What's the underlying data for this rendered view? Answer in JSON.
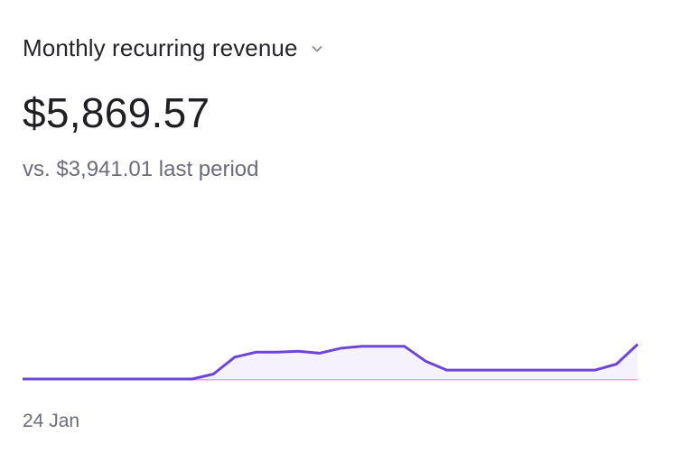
{
  "metric": {
    "title": "Monthly recurring revenue",
    "dropdown_icon": "chevron-down-icon",
    "value": "$5,869.57",
    "comparison": "vs. $3,941.01 last period"
  },
  "chart_data": {
    "type": "line",
    "x_start_label": "24 Jan",
    "series": [
      {
        "role": "current period",
        "color": "#6e46d6",
        "fill": "#f6f2fc",
        "values": [
          0,
          0,
          0,
          0,
          0,
          0,
          0,
          0,
          0,
          0.05,
          0.22,
          0.27,
          0.27,
          0.28,
          0.26,
          0.31,
          0.33,
          0.33,
          0.33,
          0.18,
          0.09,
          0.09,
          0.09,
          0.09,
          0.09,
          0.09,
          0.09,
          0.09,
          0.15,
          0.35
        ]
      },
      {
        "role": "previous period",
        "color": "#f1a1e0",
        "values": [
          0,
          0,
          0,
          0,
          0,
          0,
          0,
          0,
          0,
          0,
          0,
          0,
          0,
          0,
          0,
          0,
          0,
          0,
          0,
          0,
          0,
          0,
          0,
          0,
          0,
          0,
          0,
          0,
          0,
          0
        ]
      }
    ]
  }
}
